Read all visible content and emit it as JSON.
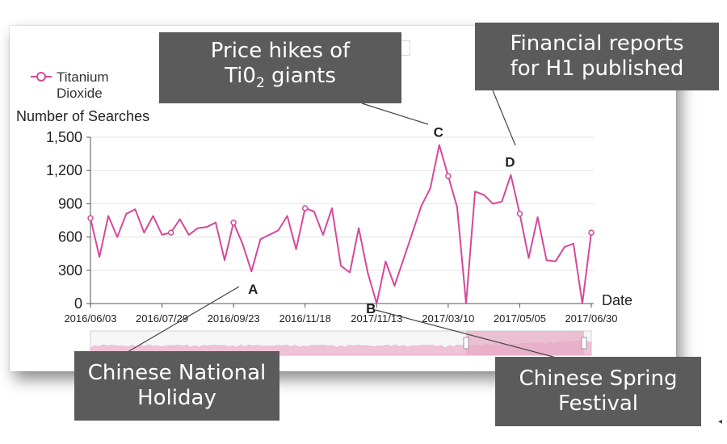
{
  "chart_data": {
    "type": "line",
    "title": "",
    "xlabel": "Date",
    "ylabel": "Number of Searches",
    "ylim": [
      0,
      1500
    ],
    "y_ticks": [
      "0",
      "300",
      "600",
      "900",
      "1,200",
      "1,500"
    ],
    "x_tick_labels": [
      "2016/06/03",
      "2016/07/29",
      "2016/09/23",
      "2016/11/18",
      "2017/11/13",
      "2017/03/10",
      "2017/05/05",
      "2017/06/30"
    ],
    "legend": {
      "position": "top-left",
      "line1": "Titanium",
      "line2": "Dioxide"
    },
    "grid": true,
    "line_color": "#d6489a",
    "series": [
      {
        "name": "Titanium Dioxide",
        "values": [
          770,
          420,
          790,
          600,
          810,
          850,
          640,
          790,
          620,
          640,
          760,
          620,
          680,
          690,
          730,
          390,
          730,
          540,
          290,
          580,
          620,
          660,
          790,
          490,
          860,
          830,
          620,
          860,
          340,
          280,
          680,
          280,
          0,
          380,
          160,
          400,
          640,
          880,
          1040,
          1430,
          1150,
          870,
          0,
          1010,
          980,
          900,
          920,
          1160,
          810,
          410,
          780,
          390,
          380,
          510,
          540,
          0,
          640
        ]
      }
    ],
    "annotations": [
      {
        "letter": "A",
        "index": 18
      },
      {
        "letter": "B",
        "index": 32
      },
      {
        "letter": "C",
        "index": 39
      },
      {
        "letter": "D",
        "index": 47
      }
    ]
  },
  "callouts": {
    "price_hikes_line1": "Price hikes of",
    "price_hikes_line2_main": "Ti0",
    "price_hikes_line2_sub": "2",
    "price_hikes_line2_tail": " giants",
    "financial_line1": "Financial reports",
    "financial_line2": "for H1 published",
    "national_line1": "Chinese National",
    "national_line2": "Holiday",
    "spring_line1": "Chinese Spring",
    "spring_line2": "Festival"
  },
  "corner_arrow": "◂"
}
